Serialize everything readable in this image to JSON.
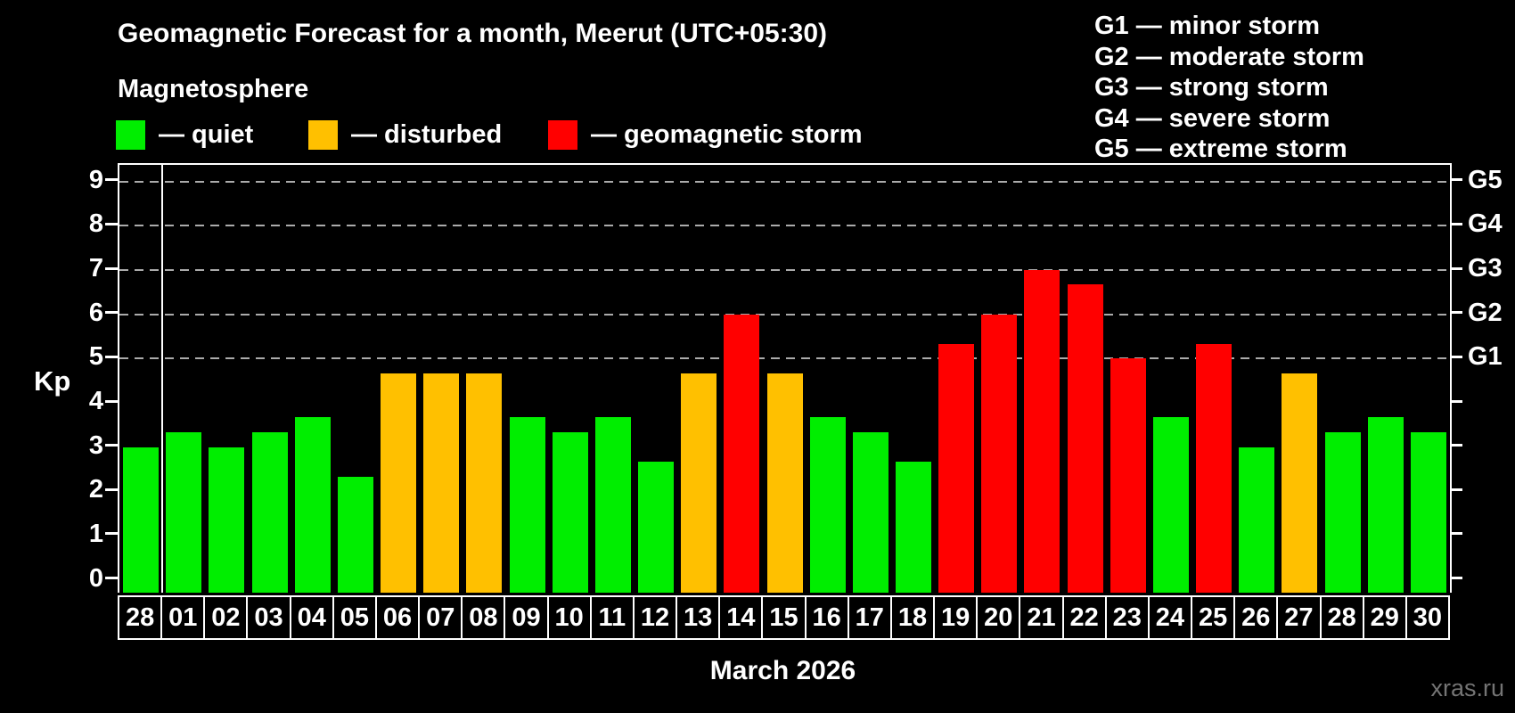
{
  "title": "Geomagnetic Forecast for a month, Meerut (UTC+05:30)",
  "subtitle": "Magnetosphere",
  "legend": {
    "items": [
      {
        "label": "— quiet",
        "status": "quiet"
      },
      {
        "label": "— disturbed",
        "status": "disturbed"
      },
      {
        "label": "— geomagnetic storm",
        "status": "storm"
      }
    ]
  },
  "g_scale_legend": [
    "G1 — minor storm",
    "G2 — moderate storm",
    "G3 — strong storm",
    "G4 — severe storm",
    "G5 — extreme storm"
  ],
  "colors": {
    "quiet": "#00ee00",
    "disturbed": "#ffc000",
    "storm": "#ff0000",
    "grid": "#ababab",
    "axis": "#ffffff",
    "watermark": "#747474"
  },
  "watermark": "xras.ru",
  "chart_data": {
    "type": "bar",
    "title": "Geomagnetic Forecast for a month, Meerut (UTC+05:30)",
    "ylabel": "Kp",
    "month_label": "March 2026",
    "ylim": [
      0,
      9
    ],
    "y_ticks": [
      0,
      1,
      2,
      3,
      4,
      5,
      6,
      7,
      8,
      9
    ],
    "grid_levels": [
      5,
      6,
      7,
      8,
      9
    ],
    "right_axis_labels": [
      {
        "kp": 9,
        "label": "G5"
      },
      {
        "kp": 8,
        "label": "G4"
      },
      {
        "kp": 7,
        "label": "G3"
      },
      {
        "kp": 6,
        "label": "G2"
      },
      {
        "kp": 5,
        "label": "G1"
      }
    ],
    "month_separator_after_index": 0,
    "categories": [
      "28",
      "01",
      "02",
      "03",
      "04",
      "05",
      "06",
      "07",
      "08",
      "09",
      "10",
      "11",
      "12",
      "13",
      "14",
      "15",
      "16",
      "17",
      "18",
      "19",
      "20",
      "21",
      "22",
      "23",
      "24",
      "25",
      "26",
      "27",
      "28",
      "29",
      "30"
    ],
    "values": [
      3.0,
      3.33,
      3.0,
      3.33,
      3.67,
      2.33,
      4.67,
      4.67,
      4.67,
      3.67,
      3.33,
      3.67,
      2.67,
      4.67,
      6.0,
      4.67,
      3.67,
      3.33,
      2.67,
      5.33,
      6.0,
      7.0,
      6.67,
      5.0,
      3.67,
      5.33,
      3.0,
      4.67,
      3.33,
      3.67,
      3.33
    ],
    "statuses": [
      "quiet",
      "quiet",
      "quiet",
      "quiet",
      "quiet",
      "quiet",
      "disturbed",
      "disturbed",
      "disturbed",
      "quiet",
      "quiet",
      "quiet",
      "quiet",
      "disturbed",
      "storm",
      "disturbed",
      "quiet",
      "quiet",
      "quiet",
      "storm",
      "storm",
      "storm",
      "storm",
      "storm",
      "quiet",
      "storm",
      "quiet",
      "disturbed",
      "quiet",
      "quiet",
      "quiet"
    ]
  }
}
